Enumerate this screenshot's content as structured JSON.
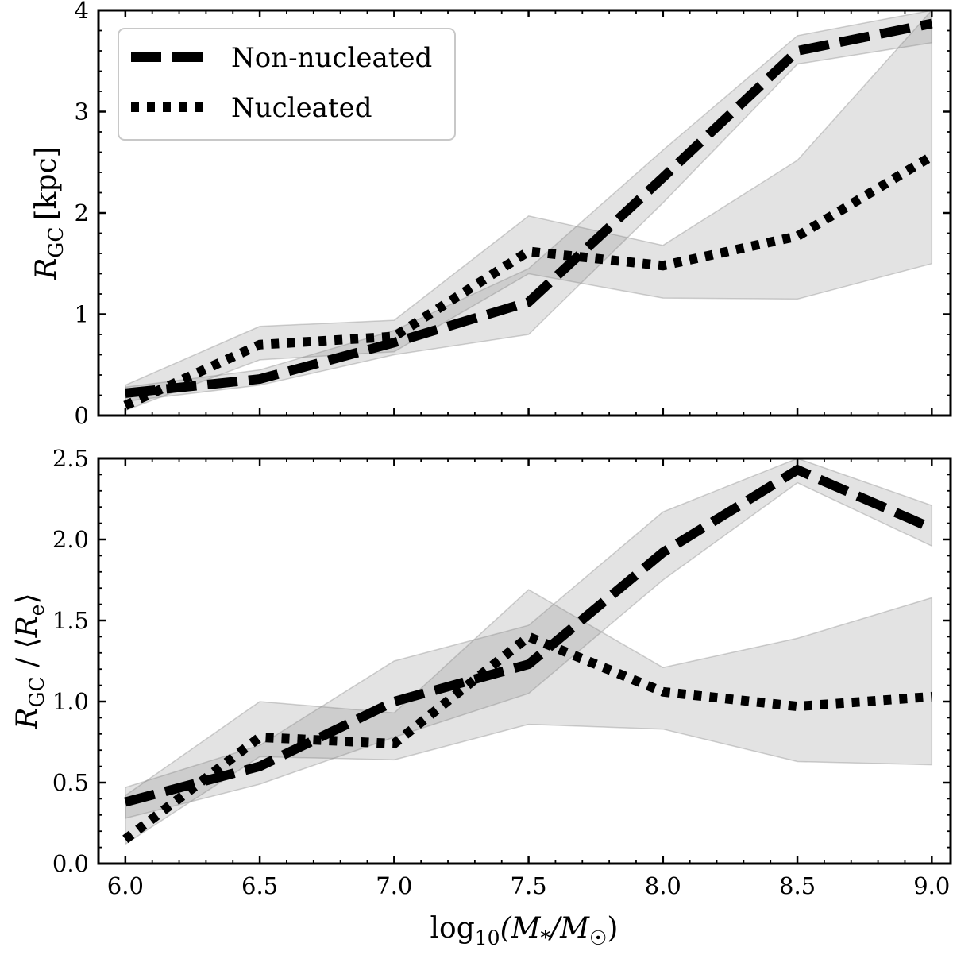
{
  "chart_data": [
    {
      "type": "line",
      "panel": "top",
      "title": "",
      "xlabel": "",
      "ylabel": "R_GC [kpc]",
      "ylabel_parts": {
        "main": "R",
        "sub": "GC",
        "unit": "[kpc]"
      },
      "xlim": [
        5.9,
        9.07
      ],
      "ylim": [
        0,
        4
      ],
      "grid": false,
      "x": [
        6.0,
        6.5,
        7.0,
        7.5,
        8.0,
        8.5,
        9.0
      ],
      "yticks": [
        0,
        1,
        2,
        3,
        4
      ],
      "ytick_labels": [
        "0",
        "1",
        "2",
        "3",
        "4"
      ],
      "legend": {
        "position": "top-left",
        "entries": [
          "Non-nucleated",
          "Nucleated"
        ]
      },
      "series": [
        {
          "name": "Non-nucleated",
          "style": "dashed",
          "values": [
            0.22,
            0.36,
            0.72,
            1.12,
            2.35,
            3.6,
            3.87
          ],
          "band_low": [
            0.14,
            0.3,
            0.6,
            0.8,
            2.1,
            3.47,
            3.68
          ],
          "band_high": [
            0.28,
            0.45,
            0.84,
            1.45,
            2.62,
            3.75,
            4.0
          ]
        },
        {
          "name": "Nucleated",
          "style": "dotted",
          "values": [
            0.1,
            0.7,
            0.78,
            1.62,
            1.48,
            1.77,
            2.56
          ],
          "band_low": [
            0.05,
            0.55,
            0.63,
            1.4,
            1.16,
            1.15,
            1.5
          ],
          "band_high": [
            0.3,
            0.88,
            0.94,
            1.97,
            1.68,
            2.52,
            4.0
          ]
        }
      ]
    },
    {
      "type": "line",
      "panel": "bottom",
      "title": "",
      "xlabel": "log10(M*/M☉)",
      "xlabel_parts": {
        "log": "log",
        "sub": "10",
        "rest": "(M",
        "star": "*",
        "slash": "/M",
        "sun": "☉",
        "close": ")"
      },
      "ylabel": "R_GC / ⟨R_e⟩",
      "ylabel_parts": {
        "main": "R",
        "sub": "GC",
        "mid": " / ⟨",
        "main2": "R",
        "sub2": "e",
        "close": "⟩"
      },
      "xlim": [
        5.9,
        9.07
      ],
      "ylim": [
        0.0,
        2.5
      ],
      "grid": false,
      "x": [
        6.0,
        6.5,
        7.0,
        7.5,
        8.0,
        8.5,
        9.0
      ],
      "xticks": [
        6.0,
        6.5,
        7.0,
        7.5,
        8.0,
        8.5,
        9.0
      ],
      "xtick_labels": [
        "6.0",
        "6.5",
        "7.0",
        "7.5",
        "8.0",
        "8.5",
        "9.0"
      ],
      "yticks": [
        0.0,
        0.5,
        1.0,
        1.5,
        2.0,
        2.5
      ],
      "ytick_labels": [
        "0.0",
        "0.5",
        "1.0",
        "1.5",
        "2.0",
        "2.5"
      ],
      "series": [
        {
          "name": "Non-nucleated",
          "style": "dashed",
          "values": [
            0.38,
            0.6,
            1.0,
            1.23,
            1.92,
            2.43,
            2.07
          ],
          "band_low": [
            0.28,
            0.49,
            0.78,
            1.05,
            1.75,
            2.35,
            1.96
          ],
          "band_high": [
            0.47,
            0.73,
            1.25,
            1.47,
            2.17,
            2.5,
            2.21
          ]
        },
        {
          "name": "Nucleated",
          "style": "dotted",
          "values": [
            0.15,
            0.78,
            0.74,
            1.4,
            1.06,
            0.97,
            1.03
          ],
          "band_low": [
            0.12,
            0.66,
            0.64,
            0.86,
            0.83,
            0.63,
            0.61
          ],
          "band_high": [
            0.42,
            1.0,
            0.93,
            1.69,
            1.21,
            1.39,
            1.64
          ]
        }
      ]
    }
  ]
}
